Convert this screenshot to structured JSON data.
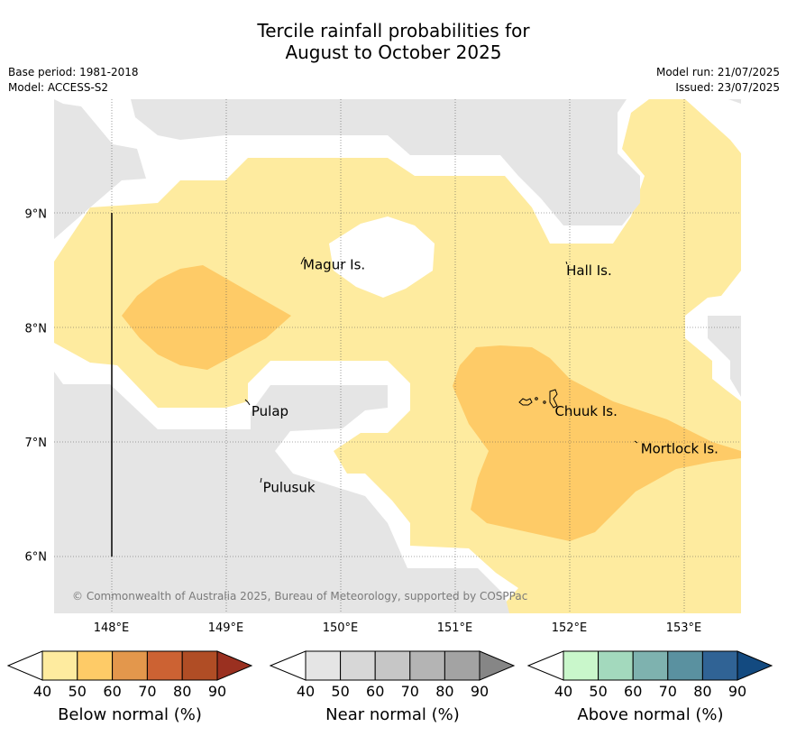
{
  "title": {
    "line1": "Tercile rainfall probabilities for",
    "line2": "August to October 2025"
  },
  "info_left": {
    "base_period": "Base period: 1981-2018",
    "model": "Model: ACCESS-S2"
  },
  "info_right": {
    "model_run": "Model run: 21/07/2025",
    "issued": "Issued: 23/07/2025"
  },
  "map": {
    "lon_range": [
      147.5,
      153.5
    ],
    "lat_range": [
      5.5,
      10.0
    ],
    "lat_labels": [
      {
        "value": 9,
        "text": "9°N"
      },
      {
        "value": 8,
        "text": "8°N"
      },
      {
        "value": 7,
        "text": "7°N"
      },
      {
        "value": 6,
        "text": "6°N"
      }
    ],
    "lon_labels": [
      {
        "value": 148,
        "text": "148°E"
      },
      {
        "value": 149,
        "text": "149°E"
      },
      {
        "value": 150,
        "text": "150°E"
      },
      {
        "value": 151,
        "text": "151°E"
      },
      {
        "value": 152,
        "text": "152°E"
      },
      {
        "value": 153,
        "text": "153°E"
      }
    ],
    "gridlines": "dotted",
    "places": [
      {
        "name": "Magur Is.",
        "lon": 149.65,
        "lat": 8.55
      },
      {
        "name": "Hall Is.",
        "lon": 151.95,
        "lat": 8.5
      },
      {
        "name": "Pulap",
        "lon": 149.2,
        "lat": 7.27
      },
      {
        "name": "Chuuk Is.",
        "lon": 151.85,
        "lat": 7.27
      },
      {
        "name": "Mortlock Is.",
        "lon": 152.6,
        "lat": 6.94
      },
      {
        "name": "Pulusuk",
        "lon": 149.3,
        "lat": 6.6
      }
    ],
    "copyright": "© Commonwealth of Australia 2025, Bureau of Meteorology, supported by COSPPac",
    "colors": {
      "near_normal": "#e5e5e5",
      "no_signal": "#ffffff",
      "below_40_50": "#feeb9f",
      "below_50_60": "#fecb67"
    }
  },
  "colorbars": [
    {
      "label": "Below normal (%)",
      "ticks": [
        "40",
        "50",
        "60",
        "70",
        "80",
        "90"
      ],
      "colors": [
        "#ffffff",
        "#feeb9f",
        "#fecb67",
        "#e3974c",
        "#cc6233",
        "#b04d25",
        "#9a3020"
      ]
    },
    {
      "label": "Near normal (%)",
      "ticks": [
        "40",
        "50",
        "60",
        "70",
        "80",
        "90"
      ],
      "colors": [
        "#ffffff",
        "#e5e5e5",
        "#d7d7d7",
        "#c6c6c6",
        "#b4b4b4",
        "#a3a3a3",
        "#868686"
      ]
    },
    {
      "label": "Above normal (%)",
      "ticks": [
        "40",
        "50",
        "60",
        "70",
        "80",
        "90"
      ],
      "colors": [
        "#ffffff",
        "#c9f7cb",
        "#a3d9bd",
        "#7eb2af",
        "#5a91a0",
        "#306395",
        "#134a80"
      ]
    }
  ]
}
